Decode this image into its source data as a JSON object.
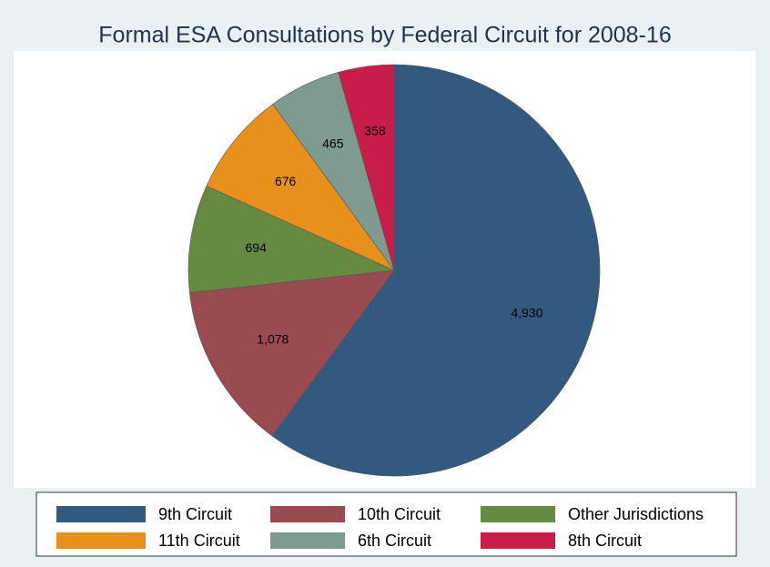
{
  "chart_data": {
    "type": "pie",
    "title": "Formal ESA Consultations by Federal Circuit for 2008-16",
    "categories": [
      "9th Circuit",
      "10th Circuit",
      "Other Jurisdictions",
      "11th Circuit",
      "6th Circuit",
      "8th Circuit"
    ],
    "values": [
      4930,
      1078,
      694,
      676,
      465,
      358
    ],
    "value_labels": [
      "4,930",
      "1,078",
      "694",
      "676",
      "465",
      "358"
    ],
    "colors": [
      "#325a7e",
      "#994b51",
      "#668a42",
      "#e8901c",
      "#7f9a8f",
      "#c81d48"
    ],
    "legend": "bottom"
  }
}
